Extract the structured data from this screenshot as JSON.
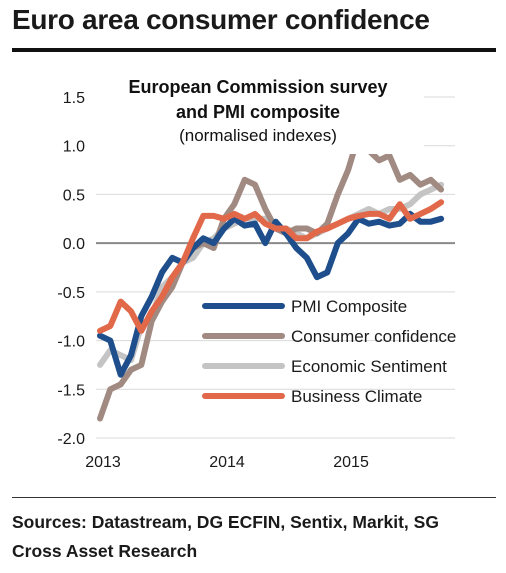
{
  "headline": "Euro area consumer confidence",
  "sources": "Sources: Datastream, DG ECFIN, Sentix, Markit, SG Cross Asset Research",
  "chart_data": {
    "type": "line",
    "title": "European Commission survey",
    "title_line2": "and PMI composite",
    "subtitle": "(normalised indexes)",
    "xlabel": "",
    "ylabel": "",
    "ylim": [
      -2.0,
      1.5
    ],
    "yticks": [
      "1.5",
      "1.0",
      "0.5",
      "0.0",
      "-0.5",
      "-1.0",
      "-1.5",
      "-2.0"
    ],
    "xlim": [
      2013.0,
      2015.83
    ],
    "xticks": [
      "2013",
      "2014",
      "2015"
    ],
    "grid": "horizontal",
    "legend_position": "lower-right",
    "x": [
      2013.0,
      2013.083,
      2013.167,
      2013.25,
      2013.333,
      2013.417,
      2013.5,
      2013.583,
      2013.667,
      2013.75,
      2013.833,
      2013.917,
      2014.0,
      2014.083,
      2014.167,
      2014.25,
      2014.333,
      2014.417,
      2014.5,
      2014.583,
      2014.667,
      2014.75,
      2014.833,
      2014.917,
      2015.0,
      2015.083,
      2015.167,
      2015.25,
      2015.333,
      2015.417,
      2015.5,
      2015.583,
      2015.667,
      2015.75
    ],
    "series": [
      {
        "name": "PMI Composite",
        "color": "#1f4e8c",
        "values": [
          -0.95,
          -1.0,
          -1.35,
          -1.15,
          -0.75,
          -0.55,
          -0.3,
          -0.15,
          -0.2,
          -0.05,
          0.05,
          0.0,
          0.15,
          0.25,
          0.18,
          0.2,
          0.0,
          0.22,
          0.1,
          -0.05,
          -0.15,
          -0.35,
          -0.3,
          0.0,
          0.1,
          0.25,
          0.2,
          0.22,
          0.18,
          0.2,
          0.3,
          0.22,
          0.22,
          0.25
        ]
      },
      {
        "name": "Consumer confidence",
        "color": "#a08a82",
        "values": [
          -1.8,
          -1.5,
          -1.45,
          -1.3,
          -1.25,
          -0.8,
          -0.6,
          -0.45,
          -0.2,
          -0.05,
          0.0,
          -0.05,
          0.25,
          0.4,
          0.65,
          0.6,
          0.35,
          0.15,
          0.1,
          0.15,
          0.15,
          0.1,
          0.2,
          0.5,
          0.75,
          1.1,
          0.95,
          0.85,
          0.9,
          0.65,
          0.7,
          0.6,
          0.65,
          0.55
        ]
      },
      {
        "name": "Economic Sentiment",
        "color": "#c4c4c4",
        "values": [
          -1.25,
          -1.1,
          -1.15,
          -1.2,
          -0.85,
          -0.75,
          -0.45,
          -0.35,
          -0.2,
          -0.15,
          0.0,
          0.05,
          0.15,
          0.2,
          0.25,
          0.25,
          0.25,
          0.15,
          0.15,
          0.1,
          0.05,
          0.1,
          0.15,
          0.2,
          0.25,
          0.3,
          0.35,
          0.3,
          0.35,
          0.35,
          0.4,
          0.5,
          0.55,
          0.6
        ]
      },
      {
        "name": "Business Climate",
        "color": "#e2684a",
        "values": [
          -0.9,
          -0.85,
          -0.6,
          -0.7,
          -0.9,
          -0.7,
          -0.55,
          -0.35,
          -0.2,
          0.05,
          0.28,
          0.28,
          0.25,
          0.3,
          0.25,
          0.3,
          0.2,
          0.15,
          0.15,
          0.05,
          0.05,
          0.12,
          0.15,
          0.2,
          0.25,
          0.28,
          0.3,
          0.3,
          0.25,
          0.4,
          0.25,
          0.3,
          0.35,
          0.42
        ]
      }
    ]
  }
}
